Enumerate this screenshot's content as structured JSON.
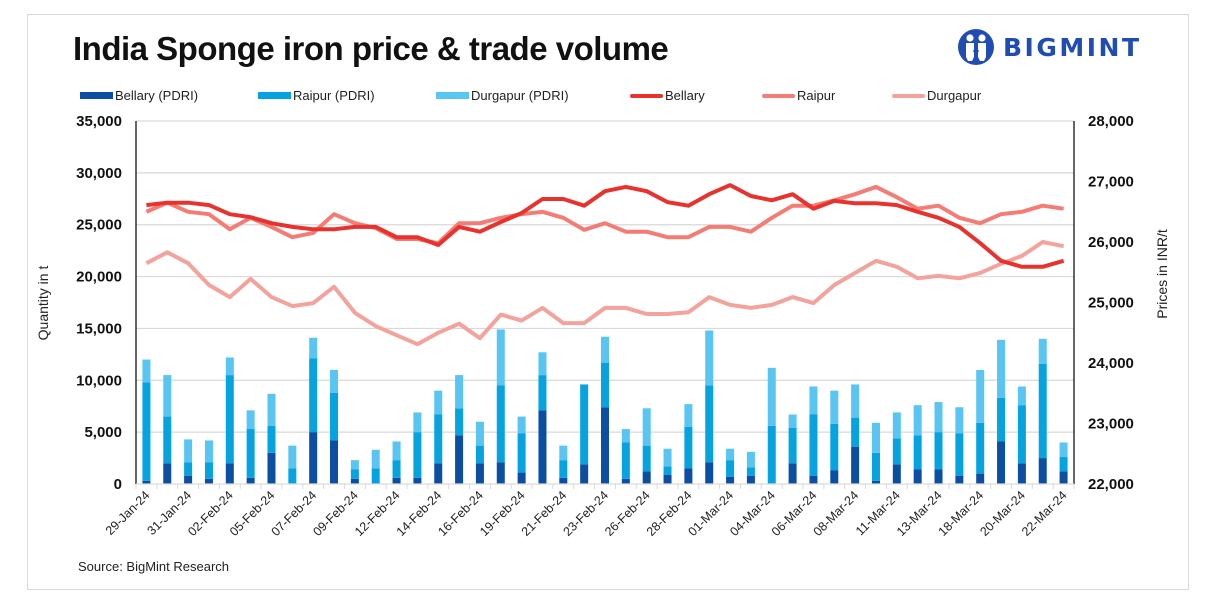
{
  "header": {
    "title": "India Sponge iron price & trade volume",
    "brand": "BIGMINT",
    "brand_color": "#1f4db3"
  },
  "footer": {
    "source": "Source: BigMint Research"
  },
  "chart_data": {
    "type": "bar+line",
    "title": "India Sponge iron price & trade volume",
    "legend_position": "top",
    "grid": true,
    "x": [
      "29-Jan-24",
      "30-Jan-24",
      "31-Jan-24",
      "01-Feb-24",
      "02-Feb-24",
      "03-Feb-24",
      "05-Feb-24",
      "06-Feb-24",
      "07-Feb-24",
      "08-Feb-24",
      "09-Feb-24",
      "10-Feb-24",
      "12-Feb-24",
      "13-Feb-24",
      "14-Feb-24",
      "15-Feb-24",
      "16-Feb-24",
      "17-Feb-24",
      "19-Feb-24",
      "20-Feb-24",
      "21-Feb-24",
      "22-Feb-24",
      "23-Feb-24",
      "24-Feb-24",
      "26-Feb-24",
      "27-Feb-24",
      "28-Feb-24",
      "29-Feb-24",
      "01-Mar-24",
      "02-Mar-24",
      "04-Mar-24",
      "05-Mar-24",
      "06-Mar-24",
      "07-Mar-24",
      "08-Mar-24",
      "09-Mar-24",
      "11-Mar-24",
      "12-Mar-24",
      "13-Mar-24",
      "14-Mar-24",
      "18-Mar-24",
      "19-Mar-24",
      "20-Mar-24",
      "21-Mar-24",
      "22-Mar-24"
    ],
    "xtick_labels": [
      "29-Jan-24",
      "31-Jan-24",
      "02-Feb-24",
      "05-Feb-24",
      "07-Feb-24",
      "09-Feb-24",
      "12-Feb-24",
      "14-Feb-24",
      "16-Feb-24",
      "19-Feb-24",
      "21-Feb-24",
      "23-Feb-24",
      "26-Feb-24",
      "28-Feb-24",
      "01-Mar-24",
      "04-Mar-24",
      "06-Mar-24",
      "08-Mar-24",
      "11-Mar-24",
      "13-Mar-24",
      "18-Mar-24",
      "20-Mar-24",
      "22-Mar-24"
    ],
    "y_left": {
      "label": "Quantity in t",
      "range": [
        0,
        35000
      ],
      "ticks": [
        "0",
        "5,000",
        "10,000",
        "15,000",
        "20,000",
        "25,000",
        "30,000",
        "35,000"
      ],
      "tick_values": [
        0,
        5000,
        10000,
        15000,
        20000,
        25000,
        30000,
        35000
      ]
    },
    "y_right": {
      "label": "Prices in INR/t",
      "range": [
        22000,
        28000
      ],
      "ticks": [
        "22,000",
        "23,000",
        "24,000",
        "25,000",
        "26,000",
        "27,000",
        "28,000"
      ],
      "tick_values": [
        22000,
        23000,
        24000,
        25000,
        26000,
        27000,
        28000
      ]
    },
    "bar_series": [
      {
        "name": "Bellary (PDRI)",
        "color": "#0b4ea2",
        "stacked": true,
        "values": [
          300,
          2000,
          800,
          500,
          2000,
          600,
          3000,
          0,
          5000,
          4200,
          500,
          0,
          600,
          600,
          2000,
          4700,
          2000,
          2100,
          1100,
          7100,
          600,
          1900,
          7400,
          500,
          1200,
          900,
          1500,
          2100,
          700,
          800,
          0,
          2000,
          800,
          1300,
          3600,
          300,
          1900,
          1400,
          1400,
          800,
          1000,
          4100,
          2000,
          2500,
          1200
        ]
      },
      {
        "name": "Raipur (PDRI)",
        "color": "#05a3e0",
        "stacked": true,
        "values": [
          9500,
          4500,
          1300,
          1600,
          8500,
          4700,
          2600,
          1500,
          7100,
          4600,
          900,
          1500,
          1700,
          4400,
          4700,
          2600,
          1700,
          7400,
          3800,
          3400,
          1700,
          7700,
          4300,
          3500,
          2500,
          800,
          4000,
          7400,
          1600,
          800,
          5600,
          3400,
          5900,
          4500,
          2800,
          2700,
          2500,
          3300,
          3600,
          4100,
          4900,
          4200,
          5600,
          9100,
          1400
        ]
      },
      {
        "name": "Durgapur (PDRI)",
        "color": "#58c5f2",
        "stacked": true,
        "values": [
          2200,
          4000,
          2200,
          2100,
          1700,
          1800,
          3100,
          2200,
          2000,
          2200,
          900,
          1800,
          1800,
          1900,
          2300,
          3200,
          2300,
          5400,
          1600,
          2200,
          1400,
          0,
          2500,
          1300,
          3600,
          1700,
          2200,
          5300,
          1100,
          1500,
          5600,
          1300,
          2700,
          3200,
          3200,
          2900,
          2500,
          2900,
          2900,
          2500,
          5100,
          5600,
          1800,
          2400,
          1400
        ]
      }
    ],
    "line_series": [
      {
        "name": "Bellary",
        "color": "#e8322e",
        "axis": "right",
        "values": [
          26610,
          26650,
          26650,
          26610,
          26460,
          26410,
          26310,
          26250,
          26210,
          26210,
          26250,
          26250,
          26080,
          26080,
          25950,
          26250,
          26170,
          26330,
          26480,
          26710,
          26710,
          26600,
          26840,
          26910,
          26840,
          26660,
          26600,
          26790,
          26940,
          26760,
          26690,
          26790,
          26550,
          26680,
          26640,
          26640,
          26610,
          26500,
          26400,
          26250,
          25980,
          25690,
          25590,
          25590,
          25690
        ]
      },
      {
        "name": "Raipur",
        "color": "#f47c74",
        "axis": "right",
        "values": [
          26500,
          26650,
          26500,
          26460,
          26210,
          26400,
          26250,
          26080,
          26150,
          26460,
          26310,
          26230,
          26050,
          26050,
          25980,
          26310,
          26310,
          26400,
          26460,
          26500,
          26400,
          26200,
          26310,
          26170,
          26170,
          26080,
          26080,
          26250,
          26250,
          26170,
          26400,
          26600,
          26600,
          26690,
          26790,
          26910,
          26740,
          26550,
          26600,
          26400,
          26310,
          26460,
          26500,
          26600,
          26550
        ]
      },
      {
        "name": "Durgapur",
        "color": "#f4a29c",
        "axis": "right",
        "values": [
          25650,
          25830,
          25650,
          25290,
          25090,
          25390,
          25090,
          24940,
          24990,
          25260,
          24830,
          24610,
          24460,
          24310,
          24500,
          24650,
          24410,
          24800,
          24700,
          24910,
          24660,
          24660,
          24910,
          24910,
          24810,
          24810,
          24840,
          25090,
          24960,
          24910,
          24960,
          25090,
          24990,
          25290,
          25490,
          25690,
          25590,
          25400,
          25440,
          25400,
          25490,
          25640,
          25770,
          26000,
          25930
        ]
      }
    ]
  }
}
